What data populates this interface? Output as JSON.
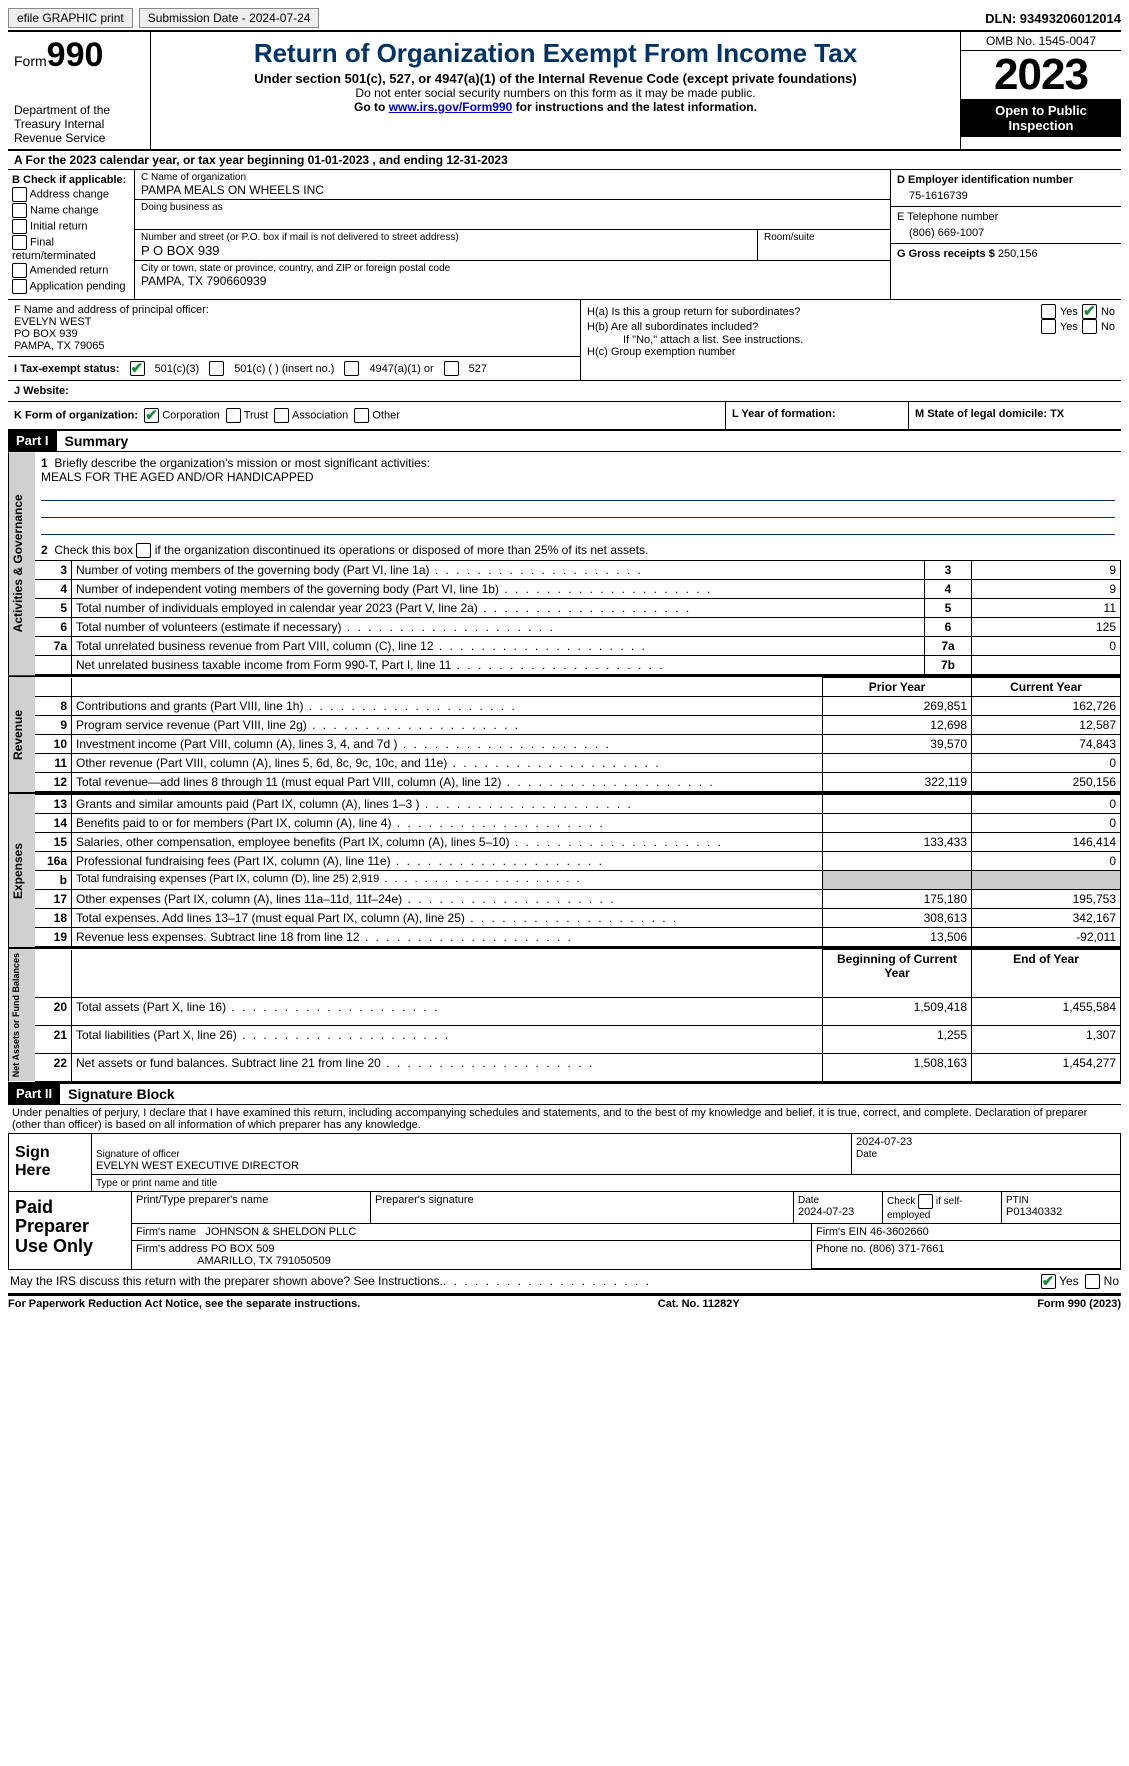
{
  "topbar": {
    "efile_label": "efile GRAPHIC print",
    "submission_label": "Submission Date - 2024-07-24",
    "dln_label": "DLN: 93493206012014"
  },
  "header": {
    "form_word": "Form",
    "form_num": "990",
    "dept": "Department of the Treasury Internal Revenue Service",
    "title": "Return of Organization Exempt From Income Tax",
    "subtitle": "Under section 501(c), 527, or 4947(a)(1) of the Internal Revenue Code (except private foundations)",
    "note1": "Do not enter social security numbers on this form as it may be made public.",
    "note2_a": "Go to ",
    "note2_link": "www.irs.gov/Form990",
    "note2_b": " for instructions and the latest information.",
    "omb": "OMB No. 1545-0047",
    "year": "2023",
    "inspect": "Open to Public Inspection"
  },
  "rowA": "A For the 2023 calendar year, or tax year beginning 01-01-2023    , and ending 12-31-2023",
  "colB": {
    "hdr": "B Check if applicable:",
    "items": [
      "Address change",
      "Name change",
      "Initial return",
      "Final return/terminated",
      "Amended return",
      "Application pending"
    ]
  },
  "colC": {
    "name_lbl": "C Name of organization",
    "name_val": "PAMPA MEALS ON WHEELS INC",
    "dba_lbl": "Doing business as",
    "street_lbl": "Number and street (or P.O. box if mail is not delivered to street address)",
    "street_val": "P O BOX 939",
    "room_lbl": "Room/suite",
    "city_lbl": "City or town, state or province, country, and ZIP or foreign postal code",
    "city_val": "PAMPA, TX  790660939"
  },
  "colD": {
    "lbl": "D Employer identification number",
    "val": "75-1616739"
  },
  "colE": {
    "lbl": "E Telephone number",
    "val": "(806) 669-1007"
  },
  "colG": {
    "lbl": "G Gross receipts $",
    "val": "250,156"
  },
  "rowF": {
    "lbl": "F  Name and address of principal officer:",
    "l1": "EVELYN WEST",
    "l2": "PO BOX 939",
    "l3": "PAMPA, TX  79065"
  },
  "rowH": {
    "a": "H(a)  Is this a group return for subordinates?",
    "b": "H(b)  Are all subordinates included?",
    "bnote": "If \"No,\" attach a list. See instructions.",
    "c": "H(c)  Group exemption number",
    "yes": "Yes",
    "no": "No"
  },
  "rowI": {
    "lbl": "I   Tax-exempt status:",
    "o1": "501(c)(3)",
    "o2": "501(c) (  ) (insert no.)",
    "o3": "4947(a)(1) or",
    "o4": "527"
  },
  "rowJ": {
    "lbl": "J   Website:"
  },
  "rowK": {
    "lbl": "K Form of organization:",
    "o1": "Corporation",
    "o2": "Trust",
    "o3": "Association",
    "o4": "Other"
  },
  "rowL": "L Year of formation:",
  "rowM": "M State of legal domicile: TX",
  "part1": {
    "tag": "Part I",
    "title": "Summary"
  },
  "summary": {
    "l1_lbl": "Briefly describe the organization's mission or most significant activities:",
    "l1_val": "MEALS FOR THE AGED AND/OR HANDICAPPED",
    "l2": "Check this box      if the organization discontinued its operations or disposed of more than 25% of its net assets.",
    "rows_gov": [
      {
        "n": "3",
        "d": "Number of voting members of the governing body (Part VI, line 1a)",
        "k": "3",
        "v": "9"
      },
      {
        "n": "4",
        "d": "Number of independent voting members of the governing body (Part VI, line 1b)",
        "k": "4",
        "v": "9"
      },
      {
        "n": "5",
        "d": "Total number of individuals employed in calendar year 2023 (Part V, line 2a)",
        "k": "5",
        "v": "11"
      },
      {
        "n": "6",
        "d": "Total number of volunteers (estimate if necessary)",
        "k": "6",
        "v": "125"
      },
      {
        "n": "7a",
        "d": "Total unrelated business revenue from Part VIII, column (C), line 12",
        "k": "7a",
        "v": "0"
      },
      {
        "n": "",
        "d": "Net unrelated business taxable income from Form 990-T, Part I, line 11",
        "k": "7b",
        "v": ""
      }
    ],
    "hdr_prior": "Prior Year",
    "hdr_curr": "Current Year",
    "rows_rev": [
      {
        "n": "8",
        "d": "Contributions and grants (Part VIII, line 1h)",
        "p": "269,851",
        "c": "162,726"
      },
      {
        "n": "9",
        "d": "Program service revenue (Part VIII, line 2g)",
        "p": "12,698",
        "c": "12,587"
      },
      {
        "n": "10",
        "d": "Investment income (Part VIII, column (A), lines 3, 4, and 7d )",
        "p": "39,570",
        "c": "74,843"
      },
      {
        "n": "11",
        "d": "Other revenue (Part VIII, column (A), lines 5, 6d, 8c, 9c, 10c, and 11e)",
        "p": "",
        "c": "0"
      },
      {
        "n": "12",
        "d": "Total revenue—add lines 8 through 11 (must equal Part VIII, column (A), line 12)",
        "p": "322,119",
        "c": "250,156"
      }
    ],
    "rows_exp": [
      {
        "n": "13",
        "d": "Grants and similar amounts paid (Part IX, column (A), lines 1–3 )",
        "p": "",
        "c": "0"
      },
      {
        "n": "14",
        "d": "Benefits paid to or for members (Part IX, column (A), line 4)",
        "p": "",
        "c": "0"
      },
      {
        "n": "15",
        "d": "Salaries, other compensation, employee benefits (Part IX, column (A), lines 5–10)",
        "p": "133,433",
        "c": "146,414"
      },
      {
        "n": "16a",
        "d": "Professional fundraising fees (Part IX, column (A), line 11e)",
        "p": "",
        "c": "0"
      },
      {
        "n": "b",
        "d": "Total fundraising expenses (Part IX, column (D), line 25) 2,919",
        "p": "SHADE",
        "c": "SHADE"
      },
      {
        "n": "17",
        "d": "Other expenses (Part IX, column (A), lines 11a–11d, 11f–24e)",
        "p": "175,180",
        "c": "195,753"
      },
      {
        "n": "18",
        "d": "Total expenses. Add lines 13–17 (must equal Part IX, column (A), line 25)",
        "p": "308,613",
        "c": "342,167"
      },
      {
        "n": "19",
        "d": "Revenue less expenses. Subtract line 18 from line 12",
        "p": "13,506",
        "c": "-92,011"
      }
    ],
    "hdr_beg": "Beginning of Current Year",
    "hdr_end": "End of Year",
    "rows_net": [
      {
        "n": "20",
        "d": "Total assets (Part X, line 16)",
        "p": "1,509,418",
        "c": "1,455,584"
      },
      {
        "n": "21",
        "d": "Total liabilities (Part X, line 26)",
        "p": "1,255",
        "c": "1,307"
      },
      {
        "n": "22",
        "d": "Net assets or fund balances. Subtract line 21 from line 20",
        "p": "1,508,163",
        "c": "1,454,277"
      }
    ],
    "vtabs": {
      "gov": "Activities & Governance",
      "rev": "Revenue",
      "exp": "Expenses",
      "net": "Net Assets or Fund Balances"
    }
  },
  "part2": {
    "tag": "Part II",
    "title": "Signature Block"
  },
  "penalties": "Under penalties of perjury, I declare that I have examined this return, including accompanying schedules and statements, and to the best of my knowledge and belief, it is true, correct, and complete. Declaration of preparer (other than officer) is based on all information of which preparer has any knowledge.",
  "sign": {
    "lbl": "Sign Here",
    "date": "2024-07-23",
    "sig_lbl": "Signature of officer",
    "name": "EVELYN WEST EXECUTIVE DIRECTOR",
    "type_lbl": "Type or print name and title",
    "date_lbl": "Date"
  },
  "prep": {
    "lbl": "Paid Preparer Use Only",
    "col1": "Print/Type preparer's name",
    "col2": "Preparer's signature",
    "col3_lbl": "Date",
    "col3_val": "2024-07-23",
    "col4": "Check        if self-employed",
    "col5_lbl": "PTIN",
    "col5_val": "P01340332",
    "firm_name_lbl": "Firm's name",
    "firm_name": "JOHNSON & SHELDON PLLC",
    "firm_ein_lbl": "Firm's EIN",
    "firm_ein": "46-3602660",
    "firm_addr_lbl": "Firm's address",
    "firm_addr1": "PO BOX 509",
    "firm_addr2": "AMARILLO, TX  791050509",
    "phone_lbl": "Phone no.",
    "phone": "(806) 371-7661"
  },
  "discuss": {
    "q": "May the IRS discuss this return with the preparer shown above? See Instructions.",
    "yes": "Yes",
    "no": "No"
  },
  "footer": {
    "left": "For Paperwork Reduction Act Notice, see the separate instructions.",
    "mid": "Cat. No. 11282Y",
    "right_a": "Form ",
    "right_b": "990",
    "right_c": " (2023)"
  }
}
